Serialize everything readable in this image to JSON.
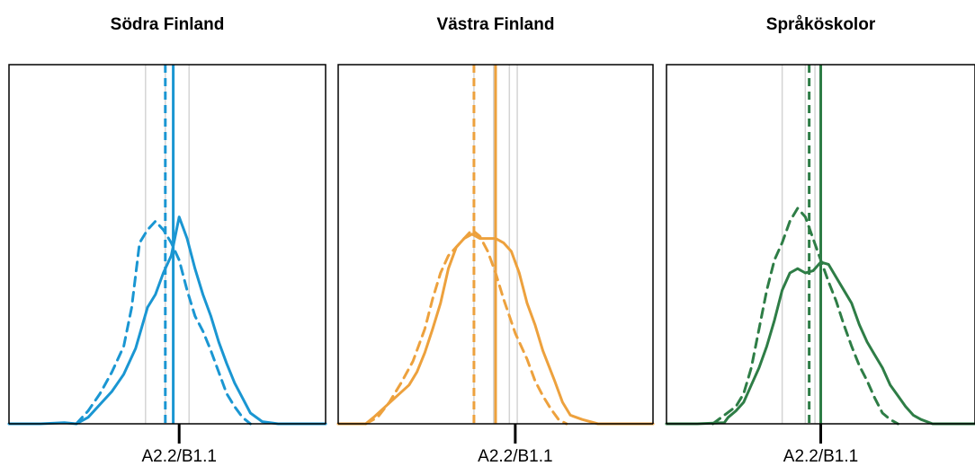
{
  "chart_data": [
    {
      "type": "density",
      "title": "Södra Finland",
      "color": "#1a96d2",
      "xlim": [
        -4,
        4
      ],
      "ticks": [
        {
          "label": "A2.2/B1.1",
          "value": 0.3
        }
      ],
      "reference_lines": [
        -0.55,
        -0.05,
        0.55
      ],
      "series": [
        {
          "line_style": "solid",
          "mean": 0.15,
          "points": [
            [
              -4.0,
              0.0
            ],
            [
              -3.2,
              0.0
            ],
            [
              -2.6,
              0.005
            ],
            [
              -2.3,
              0.0
            ],
            [
              -2.0,
              0.03
            ],
            [
              -1.7,
              0.09
            ],
            [
              -1.4,
              0.15
            ],
            [
              -1.1,
              0.23
            ],
            [
              -0.8,
              0.35
            ],
            [
              -0.5,
              0.54
            ],
            [
              -0.3,
              0.6
            ],
            [
              -0.1,
              0.7
            ],
            [
              0.1,
              0.78
            ],
            [
              0.3,
              0.96
            ],
            [
              0.5,
              0.86
            ],
            [
              0.7,
              0.72
            ],
            [
              0.9,
              0.6
            ],
            [
              1.1,
              0.5
            ],
            [
              1.3,
              0.38
            ],
            [
              1.5,
              0.28
            ],
            [
              1.7,
              0.19
            ],
            [
              1.9,
              0.12
            ],
            [
              2.1,
              0.05
            ],
            [
              2.4,
              0.01
            ],
            [
              2.8,
              0.0
            ],
            [
              4.0,
              0.0
            ]
          ]
        },
        {
          "line_style": "dashed",
          "mean": -0.05,
          "points": [
            [
              -2.3,
              0.0
            ],
            [
              -2.0,
              0.06
            ],
            [
              -1.7,
              0.14
            ],
            [
              -1.4,
              0.24
            ],
            [
              -1.1,
              0.36
            ],
            [
              -0.9,
              0.54
            ],
            [
              -0.7,
              0.84
            ],
            [
              -0.5,
              0.9
            ],
            [
              -0.3,
              0.94
            ],
            [
              -0.1,
              0.9
            ],
            [
              0.1,
              0.84
            ],
            [
              0.3,
              0.76
            ],
            [
              0.5,
              0.62
            ],
            [
              0.7,
              0.5
            ],
            [
              0.9,
              0.43
            ],
            [
              1.1,
              0.34
            ],
            [
              1.3,
              0.24
            ],
            [
              1.5,
              0.14
            ],
            [
              1.7,
              0.08
            ],
            [
              1.9,
              0.03
            ],
            [
              2.1,
              0.0
            ]
          ]
        }
      ]
    },
    {
      "type": "density",
      "title": "Västra Finland",
      "color": "#eda13d",
      "xlim": [
        -4,
        4
      ],
      "ticks": [
        {
          "label": "A2.2/B1.1",
          "value": 0.5
        }
      ],
      "reference_lines": [
        -0.55,
        -0.05,
        0.35,
        0.55
      ],
      "series": [
        {
          "line_style": "solid",
          "mean": 0.0,
          "points": [
            [
              -4.0,
              0.0
            ],
            [
              -3.3,
              0.0
            ],
            [
              -3.1,
              0.03
            ],
            [
              -2.8,
              0.08
            ],
            [
              -2.5,
              0.13
            ],
            [
              -2.2,
              0.18
            ],
            [
              -2.0,
              0.24
            ],
            [
              -1.8,
              0.33
            ],
            [
              -1.6,
              0.44
            ],
            [
              -1.4,
              0.56
            ],
            [
              -1.2,
              0.72
            ],
            [
              -1.0,
              0.82
            ],
            [
              -0.8,
              0.86
            ],
            [
              -0.6,
              0.88
            ],
            [
              -0.4,
              0.86
            ],
            [
              -0.2,
              0.86
            ],
            [
              0.0,
              0.86
            ],
            [
              0.2,
              0.84
            ],
            [
              0.4,
              0.8
            ],
            [
              0.6,
              0.7
            ],
            [
              0.8,
              0.56
            ],
            [
              1.0,
              0.46
            ],
            [
              1.2,
              0.34
            ],
            [
              1.5,
              0.2
            ],
            [
              1.7,
              0.1
            ],
            [
              1.9,
              0.04
            ],
            [
              2.2,
              0.02
            ],
            [
              2.6,
              0.0
            ],
            [
              4.0,
              0.0
            ]
          ]
        },
        {
          "line_style": "dashed",
          "mean": -0.55,
          "points": [
            [
              -3.3,
              0.0
            ],
            [
              -3.0,
              0.03
            ],
            [
              -2.7,
              0.1
            ],
            [
              -2.4,
              0.19
            ],
            [
              -2.1,
              0.29
            ],
            [
              -1.8,
              0.44
            ],
            [
              -1.6,
              0.58
            ],
            [
              -1.4,
              0.7
            ],
            [
              -1.2,
              0.78
            ],
            [
              -1.0,
              0.82
            ],
            [
              -0.8,
              0.86
            ],
            [
              -0.6,
              0.9
            ],
            [
              -0.4,
              0.87
            ],
            [
              -0.2,
              0.8
            ],
            [
              0.0,
              0.7
            ],
            [
              0.2,
              0.58
            ],
            [
              0.5,
              0.42
            ],
            [
              0.8,
              0.3
            ],
            [
              1.0,
              0.2
            ],
            [
              1.2,
              0.13
            ],
            [
              1.4,
              0.07
            ],
            [
              1.6,
              0.02
            ],
            [
              1.8,
              0.0
            ]
          ]
        }
      ]
    },
    {
      "type": "density",
      "title": "Språköskolor",
      "color": "#2e7d46",
      "xlim": [
        -4,
        4
      ],
      "ticks": [
        {
          "label": "A2.2/B1.1",
          "value": 0.0
        }
      ],
      "reference_lines": [
        -1.0,
        -0.4,
        -0.15
      ],
      "series": [
        {
          "line_style": "solid",
          "mean": 0.0,
          "points": [
            [
              -4.0,
              0.0
            ],
            [
              -3.2,
              0.0
            ],
            [
              -2.5,
              0.005
            ],
            [
              -2.4,
              0.03
            ],
            [
              -2.2,
              0.06
            ],
            [
              -2.0,
              0.1
            ],
            [
              -1.8,
              0.18
            ],
            [
              -1.6,
              0.26
            ],
            [
              -1.4,
              0.36
            ],
            [
              -1.2,
              0.48
            ],
            [
              -1.0,
              0.62
            ],
            [
              -0.8,
              0.7
            ],
            [
              -0.6,
              0.72
            ],
            [
              -0.4,
              0.7
            ],
            [
              -0.2,
              0.71
            ],
            [
              0.0,
              0.75
            ],
            [
              0.2,
              0.74
            ],
            [
              0.4,
              0.68
            ],
            [
              0.6,
              0.62
            ],
            [
              0.8,
              0.56
            ],
            [
              1.0,
              0.46
            ],
            [
              1.2,
              0.38
            ],
            [
              1.4,
              0.32
            ],
            [
              1.6,
              0.26
            ],
            [
              1.8,
              0.18
            ],
            [
              2.0,
              0.13
            ],
            [
              2.2,
              0.08
            ],
            [
              2.4,
              0.04
            ],
            [
              2.6,
              0.02
            ],
            [
              2.9,
              0.0
            ],
            [
              4.0,
              0.0
            ]
          ]
        },
        {
          "line_style": "dashed",
          "mean": -0.3,
          "points": [
            [
              -2.8,
              0.0
            ],
            [
              -2.5,
              0.04
            ],
            [
              -2.2,
              0.08
            ],
            [
              -2.0,
              0.14
            ],
            [
              -1.8,
              0.26
            ],
            [
              -1.6,
              0.44
            ],
            [
              -1.4,
              0.62
            ],
            [
              -1.2,
              0.76
            ],
            [
              -1.0,
              0.84
            ],
            [
              -0.8,
              0.94
            ],
            [
              -0.6,
              1.0
            ],
            [
              -0.4,
              0.96
            ],
            [
              -0.2,
              0.86
            ],
            [
              0.0,
              0.76
            ],
            [
              0.2,
              0.66
            ],
            [
              0.4,
              0.57
            ],
            [
              0.6,
              0.46
            ],
            [
              0.8,
              0.36
            ],
            [
              1.0,
              0.27
            ],
            [
              1.2,
              0.2
            ],
            [
              1.4,
              0.12
            ],
            [
              1.6,
              0.05
            ],
            [
              1.8,
              0.02
            ],
            [
              2.0,
              0.0
            ]
          ]
        }
      ]
    }
  ]
}
